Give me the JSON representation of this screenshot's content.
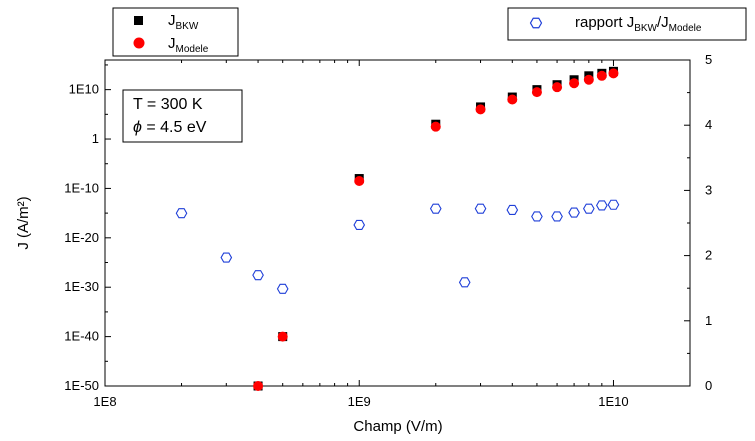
{
  "chart_data": {
    "type": "scatter",
    "xlabel": "Champ (V/m)",
    "ylabel_left": "J (A/m²)",
    "x_scale": "log",
    "xlim": [
      100000000,
      20000000000
    ],
    "x_ticks": [
      "1E8",
      "1E9",
      "1E10"
    ],
    "y_left_scale": "log",
    "ylim_left": [
      "1E-50",
      "1E+16"
    ],
    "y_left_ticks": [
      "1E-50",
      "1E-40",
      "1E-30",
      "1E-20",
      "1E-10",
      "1",
      "1E10"
    ],
    "ylim_right": [
      0,
      5
    ],
    "y_right_ticks": [
      "0",
      "1",
      "2",
      "3",
      "4",
      "5"
    ],
    "grid": false,
    "annotation": {
      "line1": "T  = 300 K",
      "phi_symbol": "ϕ",
      "line2_rest": " = 4.5 eV"
    },
    "legend_left": {
      "placement": "top-left",
      "entries": [
        {
          "base": "J",
          "sub": "BKW"
        },
        {
          "base": "J",
          "sub": "Modele"
        }
      ]
    },
    "legend_right": {
      "placement": "top-right",
      "prefix": "rapport J",
      "sub1": "BKW",
      "mid": "/J",
      "sub2": "Modele"
    },
    "colors": {
      "j_bkw": "#000000",
      "j_modele": "#ff0000",
      "ratio": "#1f3fd8"
    },
    "series": [
      {
        "name": "J_BKW",
        "axis": "left",
        "marker": "square",
        "x": [
          400000000,
          500000000,
          1000000000,
          2000000000,
          3000000000,
          4000000000,
          5000000000,
          6000000000,
          7000000000,
          8000000000,
          9000000000,
          10000000000
        ],
        "log10_y": [
          -50,
          -40,
          -8,
          3,
          6.5,
          8.5,
          10,
          11,
          12,
          12.8,
          13.3,
          13.7
        ]
      },
      {
        "name": "J_Modele",
        "axis": "left",
        "marker": "circle",
        "x": [
          400000000,
          500000000,
          1000000000,
          2000000000,
          3000000000,
          4000000000,
          5000000000,
          6000000000,
          7000000000,
          8000000000,
          9000000000,
          10000000000
        ],
        "log10_y": [
          -50,
          -40,
          -8.5,
          2.5,
          6,
          8,
          9.5,
          10.5,
          11.3,
          12,
          12.8,
          13.3
        ]
      },
      {
        "name": "rapport J_BKW/J_Modele",
        "axis": "right",
        "marker": "hexagon-open",
        "x": [
          200000000,
          300000000,
          400000000,
          500000000,
          1000000000,
          2000000000,
          2600000000,
          3000000000,
          4000000000,
          5000000000,
          6000000000,
          7000000000,
          8000000000,
          9000000000,
          10000000000
        ],
        "y": [
          2.65,
          1.97,
          1.7,
          1.49,
          2.47,
          2.72,
          1.59,
          2.72,
          2.7,
          2.6,
          2.6,
          2.66,
          2.72,
          2.77,
          2.78
        ]
      }
    ]
  }
}
